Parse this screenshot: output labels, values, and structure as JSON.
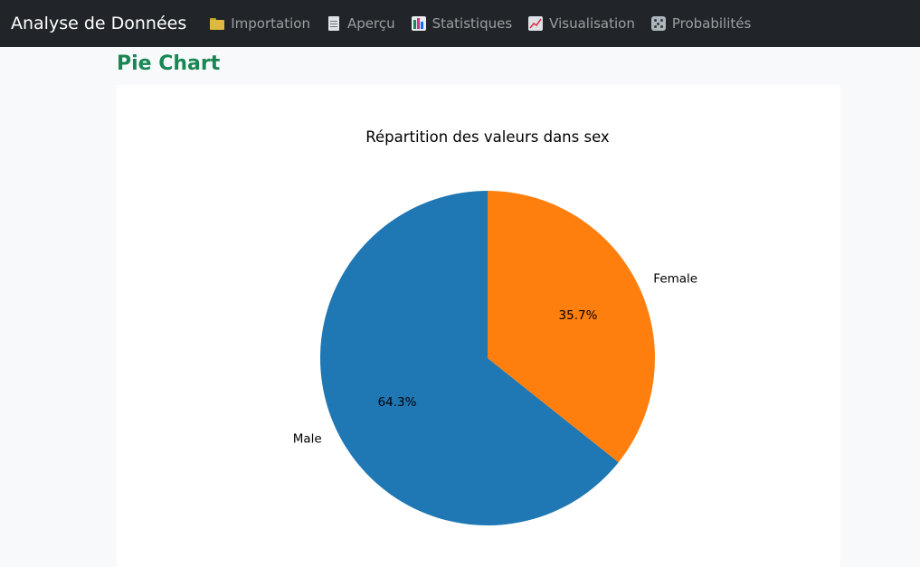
{
  "navbar": {
    "brand": "Analyse de Données",
    "items": [
      {
        "label": "Importation",
        "icon": "folder-icon"
      },
      {
        "label": "Aperçu",
        "icon": "document-icon"
      },
      {
        "label": "Statistiques",
        "icon": "bar-chart-icon"
      },
      {
        "label": "Visualisation",
        "icon": "line-chart-icon"
      },
      {
        "label": "Probabilités",
        "icon": "dice-icon"
      }
    ]
  },
  "page": {
    "title": "Pie Chart"
  },
  "chart_data": {
    "type": "pie",
    "title": "Répartition des valeurs dans sex",
    "slices": [
      {
        "label": "Male",
        "value": 64.3,
        "pct_label": "64.3%",
        "color": "#1f77b4"
      },
      {
        "label": "Female",
        "value": 35.7,
        "pct_label": "35.7%",
        "color": "#ff7f0e"
      }
    ],
    "start_angle": 90,
    "direction": "counterclockwise"
  }
}
